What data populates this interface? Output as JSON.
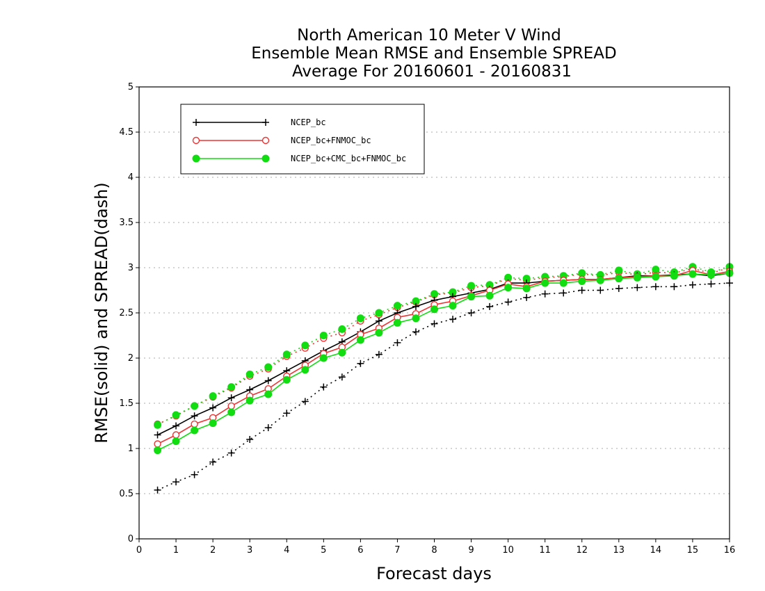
{
  "chart_data": {
    "type": "line",
    "title": [
      "North American 10 Meter V Wind",
      "Ensemble Mean RMSE and Ensemble SPREAD",
      "Average For 20160601 - 20160831"
    ],
    "xlabel": "Forecast days",
    "ylabel": "RMSE(solid) and SPREAD(dash)",
    "xlim": [
      0,
      16
    ],
    "ylim": [
      0,
      5
    ],
    "xticks": [
      "0",
      "1",
      "2",
      "3",
      "4",
      "5",
      "6",
      "7",
      "8",
      "9",
      "10",
      "11",
      "12",
      "13",
      "14",
      "15",
      "16"
    ],
    "yticks": [
      "0",
      "0.5",
      "1",
      "1.5",
      "2",
      "2.5",
      "3",
      "3.5",
      "4",
      "4.5",
      "5"
    ],
    "grid": "horizontal dotted",
    "legend_position": "top-left",
    "x": [
      0.5,
      1,
      1.5,
      2,
      2.5,
      3,
      3.5,
      4,
      4.5,
      5,
      5.5,
      6,
      6.5,
      7,
      7.5,
      8,
      8.5,
      9,
      9.5,
      10,
      10.5,
      11,
      11.5,
      12,
      12.5,
      13,
      13.5,
      14,
      14.5,
      15,
      15.5,
      16
    ],
    "series": [
      {
        "name": "NCEP_bc",
        "color": "#000000",
        "marker": "plus",
        "rmse": [
          1.15,
          1.25,
          1.36,
          1.45,
          1.56,
          1.65,
          1.75,
          1.86,
          1.97,
          2.08,
          2.18,
          2.29,
          2.41,
          2.5,
          2.57,
          2.64,
          2.68,
          2.72,
          2.76,
          2.83,
          2.83,
          2.85,
          2.86,
          2.87,
          2.87,
          2.89,
          2.91,
          2.91,
          2.92,
          2.93,
          2.91,
          2.94
        ],
        "spread": [
          0.54,
          0.63,
          0.71,
          0.85,
          0.95,
          1.1,
          1.23,
          1.39,
          1.52,
          1.68,
          1.79,
          1.94,
          2.04,
          2.17,
          2.29,
          2.38,
          2.43,
          2.5,
          2.57,
          2.62,
          2.67,
          2.71,
          2.72,
          2.75,
          2.75,
          2.77,
          2.78,
          2.79,
          2.79,
          2.81,
          2.82,
          2.83
        ]
      },
      {
        "name": "NCEP_bc+FNMOC_bc",
        "color": "#ee3333",
        "marker": "open-circle",
        "rmse": [
          1.05,
          1.15,
          1.27,
          1.34,
          1.47,
          1.58,
          1.66,
          1.8,
          1.92,
          2.05,
          2.12,
          2.26,
          2.33,
          2.45,
          2.49,
          2.59,
          2.63,
          2.69,
          2.75,
          2.82,
          2.79,
          2.85,
          2.86,
          2.87,
          2.87,
          2.89,
          2.9,
          2.91,
          2.91,
          2.97,
          2.92,
          2.96
        ],
        "spread": [
          1.27,
          1.36,
          1.47,
          1.57,
          1.67,
          1.8,
          1.88,
          2.02,
          2.11,
          2.22,
          2.28,
          2.41,
          2.48,
          2.56,
          2.62,
          2.7,
          2.72,
          2.78,
          2.8,
          2.88,
          2.86,
          2.89,
          2.9,
          2.93,
          2.91,
          2.95,
          2.92,
          2.95,
          2.94,
          2.99,
          2.94,
          3.0
        ]
      },
      {
        "name": "NCEP_bc+CMC_bc+FNMOC_bc",
        "color": "#11dd11",
        "marker": "filled-circle",
        "rmse": [
          0.98,
          1.08,
          1.2,
          1.28,
          1.4,
          1.53,
          1.6,
          1.76,
          1.87,
          2.0,
          2.06,
          2.2,
          2.28,
          2.39,
          2.44,
          2.54,
          2.58,
          2.68,
          2.69,
          2.78,
          2.77,
          2.83,
          2.83,
          2.85,
          2.86,
          2.88,
          2.89,
          2.9,
          2.91,
          2.93,
          2.92,
          2.94
        ],
        "spread": [
          1.26,
          1.37,
          1.47,
          1.58,
          1.68,
          1.82,
          1.9,
          2.04,
          2.14,
          2.25,
          2.32,
          2.44,
          2.5,
          2.58,
          2.63,
          2.71,
          2.73,
          2.8,
          2.81,
          2.89,
          2.88,
          2.9,
          2.91,
          2.94,
          2.92,
          2.97,
          2.93,
          2.98,
          2.95,
          3.01,
          2.95,
          3.01
        ]
      }
    ]
  }
}
